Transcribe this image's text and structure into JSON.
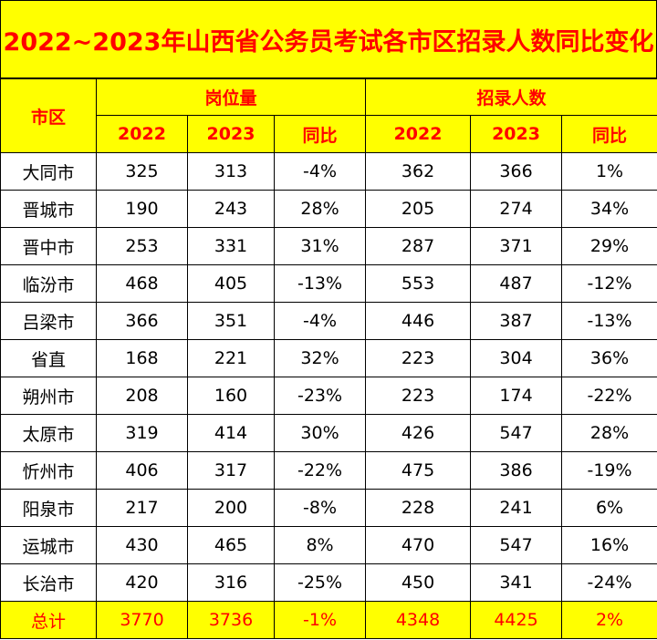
{
  "title": "2022~2023年山西省公务员考试各市区招录人数同比变化",
  "header": {
    "region": "市区",
    "group_positions": "岗位量",
    "group_recruits": "招录人数",
    "sub": [
      "2022",
      "2023",
      "同比",
      "2022",
      "2023",
      "同比"
    ]
  },
  "rows": [
    {
      "region": "大同市",
      "cells": [
        "325",
        "313",
        "-4%",
        "362",
        "366",
        "1%"
      ]
    },
    {
      "region": "晋城市",
      "cells": [
        "190",
        "243",
        "28%",
        "205",
        "274",
        "34%"
      ]
    },
    {
      "region": "晋中市",
      "cells": [
        "253",
        "331",
        "31%",
        "287",
        "371",
        "29%"
      ]
    },
    {
      "region": "临汾市",
      "cells": [
        "468",
        "405",
        "-13%",
        "553",
        "487",
        "-12%"
      ]
    },
    {
      "region": "吕梁市",
      "cells": [
        "366",
        "351",
        "-4%",
        "446",
        "387",
        "-13%"
      ]
    },
    {
      "region": "省直",
      "cells": [
        "168",
        "221",
        "32%",
        "223",
        "304",
        "36%"
      ]
    },
    {
      "region": "朔州市",
      "cells": [
        "208",
        "160",
        "-23%",
        "223",
        "174",
        "-22%"
      ]
    },
    {
      "region": "太原市",
      "cells": [
        "319",
        "414",
        "30%",
        "426",
        "547",
        "28%"
      ]
    },
    {
      "region": "忻州市",
      "cells": [
        "406",
        "317",
        "-22%",
        "475",
        "386",
        "-19%"
      ]
    },
    {
      "region": "阳泉市",
      "cells": [
        "217",
        "200",
        "-8%",
        "228",
        "241",
        "6%"
      ]
    },
    {
      "region": "运城市",
      "cells": [
        "430",
        "465",
        "8%",
        "470",
        "547",
        "16%"
      ]
    },
    {
      "region": "长治市",
      "cells": [
        "420",
        "316",
        "-25%",
        "450",
        "341",
        "-24%"
      ]
    }
  ],
  "total": {
    "region": "总计",
    "cells": [
      "3770",
      "3736",
      "-1%",
      "4348",
      "4425",
      "2%"
    ]
  },
  "colors": {
    "header_bg": "#ffff00",
    "header_text": "#ff0000",
    "body_text": "#000000"
  }
}
